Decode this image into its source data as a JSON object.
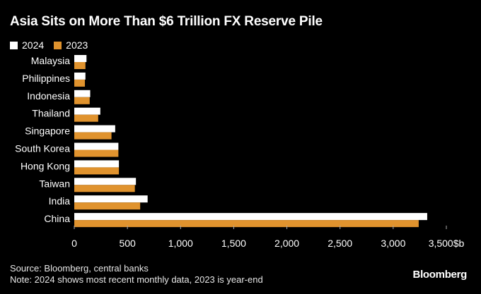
{
  "chart_data": {
    "type": "bar",
    "orientation": "horizontal",
    "title": "Asia Sits on More Than $6 Trillion FX Reserve Pile",
    "categories": [
      "Malaysia",
      "Philippines",
      "Indonesia",
      "Thailand",
      "Singapore",
      "South Korea",
      "Hong Kong",
      "Taiwan",
      "India",
      "China"
    ],
    "series": [
      {
        "name": "2024",
        "color": "#ffffff",
        "values": [
          115,
          105,
          150,
          245,
          385,
          415,
          420,
          580,
          690,
          3320
        ]
      },
      {
        "name": "2023",
        "color": "#e0932e",
        "values": [
          105,
          100,
          145,
          225,
          350,
          415,
          420,
          570,
          620,
          3240
        ]
      }
    ],
    "xlim": [
      0,
      3500
    ],
    "xticks": [
      "0",
      "500",
      "1,000",
      "1,500",
      "2,000",
      "2,500",
      "3,000",
      "3,500"
    ],
    "x_unit": "$b",
    "grid": false,
    "legend_position": "top-left"
  },
  "source": "Source: Bloomberg, central banks",
  "note": "Note: 2024 shows most recent monthly data, 2023 is year-end",
  "brand": "Bloomberg"
}
